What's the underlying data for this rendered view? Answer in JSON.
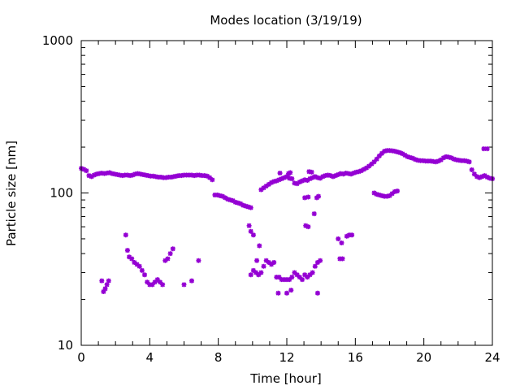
{
  "chart_data": {
    "type": "scatter",
    "title": "Modes location (3/19/19)",
    "xlabel": "Time [hour]",
    "ylabel": "Particle size [nm]",
    "xlim": [
      0,
      24
    ],
    "ylim": [
      10,
      1000
    ],
    "yscale": "log",
    "xticks": [
      "0",
      "4",
      "8",
      "12",
      "16",
      "20",
      "24"
    ],
    "yticks": [
      "10",
      "100",
      "1000"
    ],
    "grid": false,
    "legend": "none",
    "marker_color": "#9400d3",
    "series": [
      {
        "points": [
          [
            0.0,
            145
          ],
          [
            0.15,
            143
          ],
          [
            0.3,
            140
          ],
          [
            0.45,
            130
          ],
          [
            0.6,
            128
          ],
          [
            0.75,
            131
          ],
          [
            0.9,
            133
          ],
          [
            1.05,
            134
          ],
          [
            1.2,
            135
          ],
          [
            1.35,
            134
          ],
          [
            1.5,
            135
          ],
          [
            1.65,
            136
          ],
          [
            1.8,
            134
          ],
          [
            1.95,
            133
          ],
          [
            2.1,
            132
          ],
          [
            2.25,
            131
          ],
          [
            2.4,
            130
          ],
          [
            2.55,
            131
          ],
          [
            2.7,
            131
          ],
          [
            2.85,
            130
          ],
          [
            3.0,
            131
          ],
          [
            3.15,
            133
          ],
          [
            3.3,
            134
          ],
          [
            3.45,
            133
          ],
          [
            3.6,
            132
          ],
          [
            3.75,
            131
          ],
          [
            3.9,
            130
          ],
          [
            4.05,
            129
          ],
          [
            4.2,
            129
          ],
          [
            4.35,
            128
          ],
          [
            4.5,
            127
          ],
          [
            4.65,
            127
          ],
          [
            4.8,
            126
          ],
          [
            4.95,
            126
          ],
          [
            5.1,
            127
          ],
          [
            5.25,
            127
          ],
          [
            5.4,
            128
          ],
          [
            5.55,
            129
          ],
          [
            5.7,
            130
          ],
          [
            5.85,
            130
          ],
          [
            6.0,
            131
          ],
          [
            6.15,
            131
          ],
          [
            6.3,
            131
          ],
          [
            6.45,
            131
          ],
          [
            6.6,
            130
          ],
          [
            6.75,
            131
          ],
          [
            6.9,
            131
          ],
          [
            7.05,
            130
          ],
          [
            7.2,
            130
          ],
          [
            7.35,
            129
          ],
          [
            7.5,
            126
          ],
          [
            7.65,
            122
          ],
          [
            7.8,
            97
          ],
          [
            7.95,
            97
          ],
          [
            8.1,
            96
          ],
          [
            8.25,
            95
          ],
          [
            8.4,
            93
          ],
          [
            8.55,
            91
          ],
          [
            8.7,
            90
          ],
          [
            8.85,
            89
          ],
          [
            9.0,
            87
          ],
          [
            9.15,
            86
          ],
          [
            9.3,
            85
          ],
          [
            9.45,
            83
          ],
          [
            9.6,
            82
          ],
          [
            9.75,
            81
          ],
          [
            9.9,
            80
          ],
          [
            10.5,
            105
          ],
          [
            10.65,
            108
          ],
          [
            10.8,
            111
          ],
          [
            10.95,
            114
          ],
          [
            11.1,
            117
          ],
          [
            11.25,
            119
          ],
          [
            11.4,
            120
          ],
          [
            11.55,
            122
          ],
          [
            11.7,
            124
          ],
          [
            11.85,
            126
          ],
          [
            12.0,
            128
          ],
          [
            12.15,
            125
          ],
          [
            12.3,
            124
          ],
          [
            11.6,
            135
          ],
          [
            12.1,
            134
          ],
          [
            12.2,
            136
          ],
          [
            12.45,
            116
          ],
          [
            12.6,
            115
          ],
          [
            12.75,
            118
          ],
          [
            12.9,
            120
          ],
          [
            13.05,
            122
          ],
          [
            13.2,
            121
          ],
          [
            13.35,
            124
          ],
          [
            13.5,
            126
          ],
          [
            13.65,
            128
          ],
          [
            13.8,
            126
          ],
          [
            13.95,
            125
          ],
          [
            14.1,
            128
          ],
          [
            14.25,
            130
          ],
          [
            14.4,
            131
          ],
          [
            14.55,
            130
          ],
          [
            14.7,
            128
          ],
          [
            14.85,
            130
          ],
          [
            15.0,
            132
          ],
          [
            15.15,
            134
          ],
          [
            15.3,
            133
          ],
          [
            15.45,
            135
          ],
          [
            15.6,
            134
          ],
          [
            15.75,
            133
          ],
          [
            15.9,
            135
          ],
          [
            16.05,
            137
          ],
          [
            16.2,
            138
          ],
          [
            16.35,
            140
          ],
          [
            16.5,
            143
          ],
          [
            16.65,
            146
          ],
          [
            16.8,
            150
          ],
          [
            16.95,
            155
          ],
          [
            17.1,
            160
          ],
          [
            17.25,
            167
          ],
          [
            17.4,
            175
          ],
          [
            17.55,
            182
          ],
          [
            17.7,
            188
          ],
          [
            17.85,
            190
          ],
          [
            18.0,
            190
          ],
          [
            18.15,
            189
          ],
          [
            18.3,
            188
          ],
          [
            18.45,
            186
          ],
          [
            18.6,
            184
          ],
          [
            18.75,
            181
          ],
          [
            18.9,
            177
          ],
          [
            19.05,
            173
          ],
          [
            19.2,
            171
          ],
          [
            19.35,
            169
          ],
          [
            19.5,
            166
          ],
          [
            19.65,
            164
          ],
          [
            19.8,
            163
          ],
          [
            19.95,
            163
          ],
          [
            20.1,
            162
          ],
          [
            20.25,
            162
          ],
          [
            20.4,
            162
          ],
          [
            20.55,
            161
          ],
          [
            20.7,
            160
          ],
          [
            20.85,
            162
          ],
          [
            21.0,
            165
          ],
          [
            21.15,
            170
          ],
          [
            21.3,
            173
          ],
          [
            21.45,
            172
          ],
          [
            21.6,
            170
          ],
          [
            21.75,
            167
          ],
          [
            21.9,
            165
          ],
          [
            22.05,
            164
          ],
          [
            22.2,
            163
          ],
          [
            22.35,
            163
          ],
          [
            22.5,
            162
          ],
          [
            22.65,
            160
          ],
          [
            22.8,
            142
          ],
          [
            22.95,
            133
          ],
          [
            23.1,
            128
          ],
          [
            23.25,
            126
          ],
          [
            23.4,
            128
          ],
          [
            23.55,
            130
          ],
          [
            23.7,
            127
          ],
          [
            23.85,
            125
          ],
          [
            24.0,
            124
          ],
          [
            13.3,
            138
          ],
          [
            13.45,
            137
          ],
          [
            23.5,
            195
          ],
          [
            23.7,
            195
          ],
          [
            17.1,
            100
          ],
          [
            17.25,
            98
          ],
          [
            17.4,
            97
          ],
          [
            17.55,
            96
          ],
          [
            17.7,
            95
          ],
          [
            17.85,
            95
          ],
          [
            18.0,
            96
          ],
          [
            18.15,
            99
          ],
          [
            18.3,
            102
          ],
          [
            18.45,
            103
          ],
          [
            13.05,
            93
          ],
          [
            13.25,
            94
          ],
          [
            13.75,
            93
          ],
          [
            13.85,
            95
          ],
          [
            13.6,
            73
          ],
          [
            13.1,
            61
          ],
          [
            13.25,
            60
          ],
          [
            9.8,
            61
          ],
          [
            9.9,
            56
          ],
          [
            10.05,
            53
          ],
          [
            10.4,
            45
          ],
          [
            10.25,
            36
          ],
          [
            9.9,
            29
          ],
          [
            10.05,
            31
          ],
          [
            10.2,
            30
          ],
          [
            10.35,
            29
          ],
          [
            10.5,
            30
          ],
          [
            10.65,
            33
          ],
          [
            10.8,
            36
          ],
          [
            10.95,
            35
          ],
          [
            11.1,
            34
          ],
          [
            11.25,
            35
          ],
          [
            11.4,
            28
          ],
          [
            11.55,
            28
          ],
          [
            11.7,
            27
          ],
          [
            11.85,
            27
          ],
          [
            12.0,
            27
          ],
          [
            12.15,
            27
          ],
          [
            12.3,
            28
          ],
          [
            12.45,
            30
          ],
          [
            12.6,
            29
          ],
          [
            12.75,
            28
          ],
          [
            12.9,
            27
          ],
          [
            13.05,
            29
          ],
          [
            13.2,
            28
          ],
          [
            13.35,
            29
          ],
          [
            13.5,
            30
          ],
          [
            13.65,
            33
          ],
          [
            13.8,
            35
          ],
          [
            13.95,
            36
          ],
          [
            11.5,
            22
          ],
          [
            12.0,
            22
          ],
          [
            12.25,
            23
          ],
          [
            13.8,
            22
          ],
          [
            15.0,
            50
          ],
          [
            15.2,
            47
          ],
          [
            15.5,
            52
          ],
          [
            15.65,
            53
          ],
          [
            15.8,
            53
          ],
          [
            15.1,
            37
          ],
          [
            15.25,
            37
          ],
          [
            1.2,
            26.5
          ],
          [
            1.3,
            22.5
          ],
          [
            1.4,
            23.5
          ],
          [
            1.5,
            25
          ],
          [
            1.6,
            26.5
          ],
          [
            2.6,
            53
          ],
          [
            2.7,
            42
          ],
          [
            2.8,
            38
          ],
          [
            2.95,
            37
          ],
          [
            3.1,
            35
          ],
          [
            3.25,
            34
          ],
          [
            3.4,
            33
          ],
          [
            3.55,
            31
          ],
          [
            3.7,
            29
          ],
          [
            3.85,
            26
          ],
          [
            4.0,
            25
          ],
          [
            4.15,
            25
          ],
          [
            4.3,
            26
          ],
          [
            4.45,
            27
          ],
          [
            4.6,
            26
          ],
          [
            4.75,
            25
          ],
          [
            4.9,
            36
          ],
          [
            5.05,
            37
          ],
          [
            5.2,
            40
          ],
          [
            5.35,
            43
          ],
          [
            6.0,
            25
          ],
          [
            6.45,
            26.5
          ],
          [
            6.85,
            36
          ]
        ]
      }
    ]
  }
}
